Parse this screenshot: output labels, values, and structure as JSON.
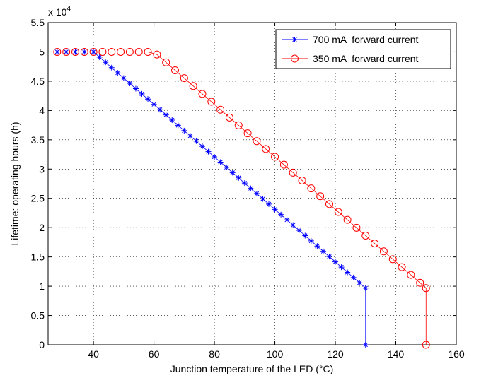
{
  "chart_data": {
    "type": "line",
    "xlabel": "Junction temperature of the LED (°C)",
    "ylabel": "Lifetime: operating hours (h)",
    "y_multiplier": "x 10",
    "y_multiplier_exp": "4",
    "xlim": [
      25,
      160
    ],
    "xticks": [
      40,
      60,
      80,
      100,
      120,
      140,
      160
    ],
    "ylim": [
      0,
      5.5
    ],
    "yticks": [
      0,
      0.5,
      1,
      1.5,
      2,
      2.5,
      3,
      3.5,
      4,
      4.5,
      5,
      5.5
    ],
    "grid": true,
    "legend": "upper right",
    "series": [
      {
        "name": "700 mA  forward current",
        "color": "#0000ff",
        "marker": "star",
        "x": [
          28,
          31,
          34,
          37,
          40,
          42,
          44,
          46,
          48,
          50,
          52,
          54,
          56,
          58,
          60,
          62,
          64,
          66,
          68,
          70,
          72,
          74,
          76,
          78,
          80,
          82,
          84,
          86,
          88,
          90,
          92,
          94,
          96,
          98,
          100,
          102,
          104,
          106,
          108,
          110,
          112,
          114,
          116,
          118,
          120,
          122,
          124,
          126,
          128,
          130,
          130
        ],
        "values": [
          5,
          5,
          5,
          5,
          5,
          4.91,
          4.821,
          4.731,
          4.642,
          4.552,
          4.462,
          4.373,
          4.283,
          4.194,
          4.104,
          4.014,
          3.925,
          3.835,
          3.746,
          3.656,
          3.566,
          3.477,
          3.387,
          3.298,
          3.208,
          3.118,
          3.029,
          2.939,
          2.85,
          2.76,
          2.67,
          2.581,
          2.491,
          2.402,
          2.312,
          2.222,
          2.133,
          2.043,
          1.954,
          1.864,
          1.774,
          1.685,
          1.595,
          1.506,
          1.416,
          1.326,
          1.237,
          1.147,
          1.058,
          0.968,
          0
        ]
      },
      {
        "name": "350 mA  forward current",
        "color": "#ff0000",
        "marker": "circle",
        "x": [
          28,
          31,
          34,
          37,
          40,
          43,
          46,
          49,
          52,
          55,
          58,
          61,
          64,
          67,
          70,
          73,
          76,
          79,
          82,
          85,
          88,
          91,
          94,
          97,
          100,
          103,
          106,
          109,
          112,
          115,
          118,
          121,
          124,
          127,
          130,
          133,
          136,
          139,
          142,
          145,
          148,
          150,
          150
        ],
        "values": [
          5,
          5,
          5,
          5,
          5,
          5,
          5,
          5,
          5,
          5,
          5,
          4.955,
          4.821,
          4.686,
          4.552,
          4.418,
          4.283,
          4.149,
          4.014,
          3.88,
          3.746,
          3.611,
          3.477,
          3.342,
          3.208,
          3.074,
          2.939,
          2.805,
          2.67,
          2.536,
          2.402,
          2.267,
          2.133,
          1.998,
          1.864,
          1.73,
          1.595,
          1.461,
          1.326,
          1.192,
          1.058,
          0.968,
          0
        ]
      }
    ]
  }
}
